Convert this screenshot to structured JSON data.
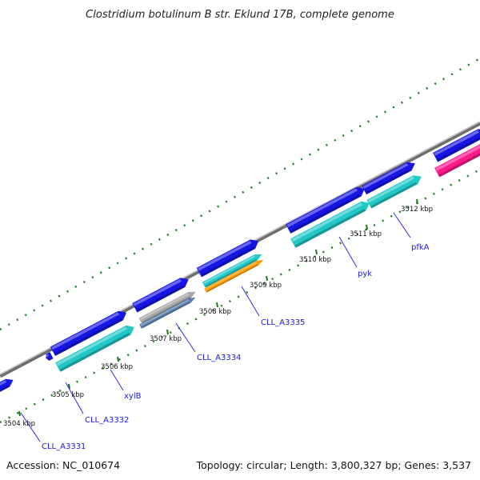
{
  "title": "Clostridium botulinum B str. Eklund 17B, complete genome",
  "footer": {
    "accession": "Accession: NC_010674",
    "summary": "Topology: circular; Length: 3,800,327 bp; Genes: 3,537"
  },
  "colors": {
    "forward_cds": "#1515e6",
    "reverse_cds": "#22c8c8",
    "trna": "#a8a8a8",
    "steel": "#5a7fae",
    "orange": "#ff9900",
    "magenta": "#ff1a8c",
    "backbone": "#8a8a8a",
    "tick": "#1a7a1a",
    "label": "#1a1adb"
  },
  "tick_labels": [
    "3504 kbp",
    "3505 kbp",
    "3506 kbp",
    "3507 kbp",
    "3508 kbp",
    "3509 kbp",
    "3510 kbp",
    "3511 kbp",
    "3512 kbp"
  ],
  "gene_labels": [
    "CLL_A3331",
    "CLL_A3332",
    "xylB",
    "CLL_A3334",
    "CLL_A3335",
    "pyk",
    "pfkA"
  ]
}
